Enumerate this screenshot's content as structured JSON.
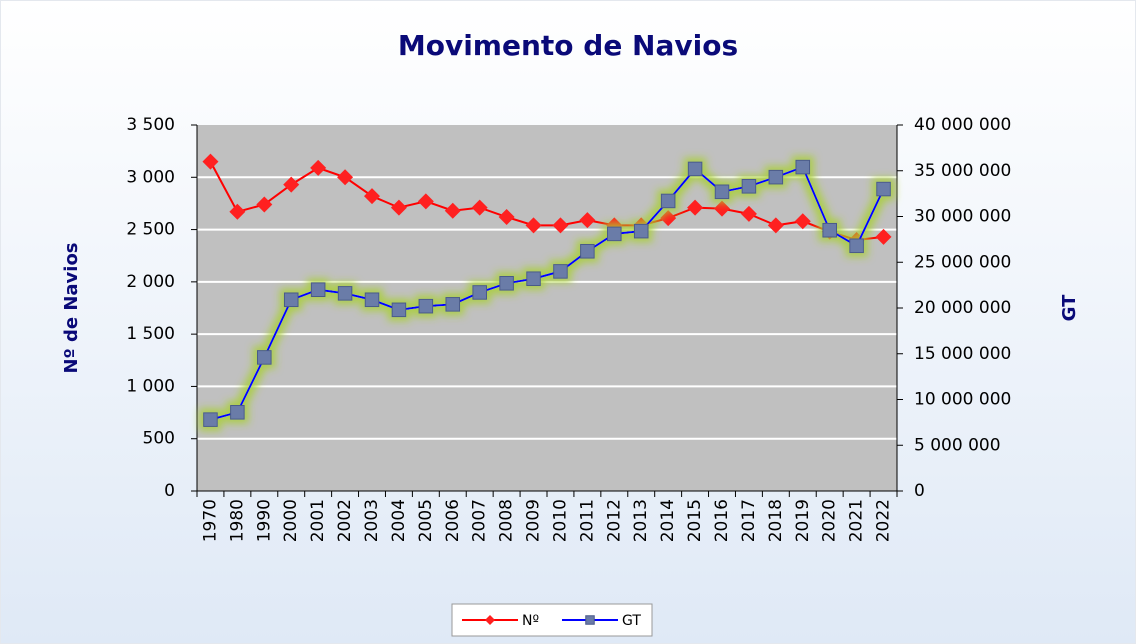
{
  "chart_data": {
    "type": "line",
    "title": "Movimento de Navios",
    "y_label": "Nº de Navios",
    "y2_label": "GT",
    "categories": [
      "1970",
      "1980",
      "1990",
      "2000",
      "2001",
      "2002",
      "2003",
      "2004",
      "2005",
      "2006",
      "2007",
      "2008",
      "2009",
      "2010",
      "2011",
      "2012",
      "2013",
      "2014",
      "2015",
      "2016",
      "2017",
      "2018",
      "2019",
      "2020",
      "2021",
      "2022"
    ],
    "series": [
      {
        "name": "Nº",
        "color": "#ff0000",
        "marker_color": "#ff2020",
        "marker": "diamond",
        "values": [
          3150,
          2670,
          2740,
          2930,
          3090,
          3000,
          2820,
          2710,
          2770,
          2680,
          2710,
          2620,
          2540,
          2540,
          2590,
          2540,
          2540,
          2610,
          2710,
          2700,
          2650,
          2540,
          2580,
          2480,
          2400,
          2430
        ]
      },
      {
        "name": "GT",
        "color": "#0000ff",
        "marker_color": "#6a7ba8",
        "marker": "square",
        "axis": "y2",
        "glow": true,
        "values": [
          7800000,
          8600000,
          14600000,
          20900000,
          22000000,
          21600000,
          20900000,
          19800000,
          20200000,
          20400000,
          21700000,
          22700000,
          23200000,
          24000000,
          26200000,
          28100000,
          28400000,
          31700000,
          35200000,
          32700000,
          33300000,
          34300000,
          35400000,
          28500000,
          26800000,
          33000000
        ]
      }
    ],
    "ylim": [
      0,
      3500
    ],
    "yticks": [
      0,
      500,
      {
        "value": 1000,
        "label": "1 000"
      },
      {
        "value": 1500,
        "label": "1 500"
      },
      {
        "value": 2000,
        "label": "2 000"
      },
      {
        "value": 2500,
        "label": "2 500"
      },
      {
        "value": 3000,
        "label": "3 000"
      },
      {
        "value": 3500,
        "label": "3 500"
      }
    ],
    "y2lim": [
      0,
      40000000
    ],
    "y2ticks": [
      0,
      {
        "value": 5000000,
        "label": "5 000 000"
      },
      {
        "value": 10000000,
        "label": "10 000 000"
      },
      {
        "value": 15000000,
        "label": "15 000 000"
      },
      {
        "value": 20000000,
        "label": "20 000 000"
      },
      {
        "value": 25000000,
        "label": "25 000 000"
      },
      {
        "value": 30000000,
        "label": "30 000 000"
      },
      {
        "value": 35000000,
        "label": "35 000 000"
      },
      {
        "value": 40000000,
        "label": "40 000 000"
      }
    ],
    "grid": true,
    "legend": "bottom"
  }
}
